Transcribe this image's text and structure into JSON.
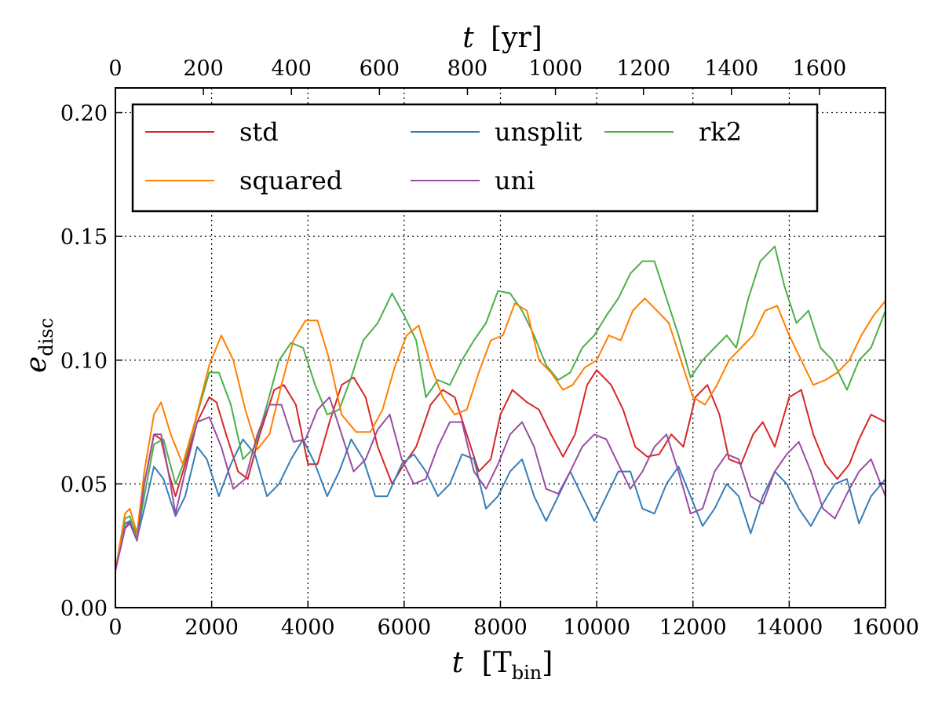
{
  "chart_data": {
    "type": "line",
    "xlabel": "t",
    "xlabel_unit": "[T",
    "xlabel_unit_sub": "bin",
    "xlabel_unit_close": "]",
    "top_xlabel": "t",
    "top_xlabel_unit": "[yr]",
    "ylabel": "e",
    "ylabel_sub": "disc",
    "xlim": [
      0,
      16000
    ],
    "ylim": [
      0,
      0.21
    ],
    "top_xlim": [
      0,
      1750
    ],
    "x_ticks": [
      0,
      2000,
      4000,
      6000,
      8000,
      10000,
      12000,
      14000,
      16000
    ],
    "x_tick_labels": [
      "0",
      "2000",
      "4000",
      "6000",
      "8000",
      "10000",
      "12000",
      "14000",
      "16000"
    ],
    "top_ticks": [
      0,
      200,
      400,
      600,
      800,
      1000,
      1200,
      1400,
      1600
    ],
    "top_tick_labels": [
      "0",
      "200",
      "400",
      "600",
      "800",
      "1000",
      "1200",
      "1400",
      "1600"
    ],
    "y_ticks": [
      0,
      0.05,
      0.1,
      0.15,
      0.2
    ],
    "y_tick_labels": [
      "0.00",
      "0.05",
      "0.10",
      "0.15",
      "0.20"
    ],
    "grid": true,
    "legend_position": "top",
    "legend_columns": 3,
    "series": [
      {
        "name": "std",
        "color": "#d62728",
        "x": [
          0,
          200,
          300,
          450,
          600,
          800,
          950,
          1100,
          1250,
          1450,
          1700,
          1950,
          2100,
          2300,
          2550,
          2750,
          3000,
          3300,
          3500,
          3750,
          4000,
          4200,
          4450,
          4700,
          4950,
          5200,
          5450,
          5750,
          6000,
          6250,
          6550,
          6800,
          7050,
          7300,
          7550,
          7800,
          8000,
          8250,
          8550,
          8800,
          9050,
          9300,
          9550,
          9800,
          10000,
          10300,
          10550,
          10800,
          11050,
          11300,
          11550,
          11800,
          12050,
          12300,
          12550,
          12750,
          13000,
          13250,
          13450,
          13700,
          14000,
          14250,
          14500,
          14750,
          15000,
          15250,
          15450,
          15700,
          16000
        ],
        "y": [
          0.015,
          0.032,
          0.035,
          0.03,
          0.05,
          0.07,
          0.068,
          0.055,
          0.045,
          0.058,
          0.075,
          0.085,
          0.083,
          0.07,
          0.055,
          0.052,
          0.07,
          0.088,
          0.09,
          0.082,
          0.058,
          0.058,
          0.075,
          0.09,
          0.093,
          0.085,
          0.065,
          0.05,
          0.058,
          0.065,
          0.082,
          0.088,
          0.085,
          0.07,
          0.055,
          0.06,
          0.078,
          0.088,
          0.083,
          0.08,
          0.07,
          0.061,
          0.07,
          0.09,
          0.096,
          0.09,
          0.08,
          0.065,
          0.061,
          0.062,
          0.07,
          0.065,
          0.085,
          0.09,
          0.078,
          0.06,
          0.058,
          0.07,
          0.075,
          0.065,
          0.085,
          0.088,
          0.07,
          0.058,
          0.052,
          0.058,
          0.068,
          0.078,
          0.075
        ]
      },
      {
        "name": "unsplit",
        "color": "#377eb8",
        "x": [
          0,
          200,
          300,
          450,
          600,
          800,
          1000,
          1250,
          1450,
          1700,
          1900,
          2150,
          2400,
          2650,
          2900,
          3150,
          3400,
          3650,
          3900,
          4150,
          4400,
          4650,
          4900,
          5150,
          5400,
          5650,
          5950,
          6200,
          6450,
          6700,
          6950,
          7200,
          7450,
          7700,
          7950,
          8200,
          8450,
          8700,
          8950,
          9200,
          9450,
          9700,
          9950,
          10200,
          10450,
          10700,
          10950,
          11200,
          11450,
          11700,
          11950,
          12200,
          12450,
          12700,
          12950,
          13200,
          13450,
          13700,
          13950,
          14200,
          14450,
          14700,
          14950,
          15200,
          15450,
          15700,
          16000
        ],
        "y": [
          0.015,
          0.034,
          0.035,
          0.028,
          0.04,
          0.057,
          0.052,
          0.037,
          0.045,
          0.065,
          0.06,
          0.045,
          0.058,
          0.068,
          0.062,
          0.045,
          0.05,
          0.06,
          0.068,
          0.058,
          0.045,
          0.055,
          0.068,
          0.06,
          0.045,
          0.045,
          0.058,
          0.062,
          0.055,
          0.045,
          0.05,
          0.062,
          0.06,
          0.04,
          0.045,
          0.055,
          0.06,
          0.045,
          0.035,
          0.045,
          0.055,
          0.045,
          0.035,
          0.045,
          0.055,
          0.055,
          0.04,
          0.038,
          0.05,
          0.057,
          0.045,
          0.033,
          0.04,
          0.05,
          0.045,
          0.03,
          0.045,
          0.055,
          0.05,
          0.04,
          0.033,
          0.042,
          0.05,
          0.052,
          0.034,
          0.045,
          0.052
        ]
      },
      {
        "name": "rk2",
        "color": "#4daf4a",
        "x": [
          0,
          200,
          300,
          450,
          600,
          800,
          1000,
          1250,
          1450,
          1700,
          1950,
          2150,
          2400,
          2650,
          2900,
          3150,
          3400,
          3650,
          3900,
          4150,
          4400,
          4650,
          4900,
          5150,
          5450,
          5750,
          6000,
          6250,
          6450,
          6700,
          6950,
          7200,
          7450,
          7700,
          7950,
          8200,
          8450,
          8700,
          8950,
          9200,
          9450,
          9700,
          9950,
          10200,
          10450,
          10700,
          10950,
          11200,
          11450,
          11700,
          11950,
          12200,
          12450,
          12700,
          12900,
          13150,
          13400,
          13700,
          13900,
          14150,
          14400,
          14650,
          14900,
          15200,
          15450,
          15700,
          16000
        ],
        "y": [
          0.015,
          0.036,
          0.037,
          0.028,
          0.045,
          0.066,
          0.068,
          0.05,
          0.06,
          0.078,
          0.095,
          0.095,
          0.082,
          0.06,
          0.065,
          0.082,
          0.1,
          0.107,
          0.105,
          0.09,
          0.078,
          0.08,
          0.093,
          0.108,
          0.115,
          0.127,
          0.118,
          0.108,
          0.085,
          0.092,
          0.09,
          0.1,
          0.108,
          0.115,
          0.128,
          0.127,
          0.12,
          0.11,
          0.098,
          0.092,
          0.095,
          0.105,
          0.11,
          0.118,
          0.125,
          0.135,
          0.14,
          0.14,
          0.125,
          0.11,
          0.093,
          0.1,
          0.105,
          0.11,
          0.105,
          0.125,
          0.14,
          0.146,
          0.13,
          0.115,
          0.12,
          0.105,
          0.1,
          0.088,
          0.1,
          0.105,
          0.12
        ]
      },
      {
        "name": "squared",
        "color": "#ff7f00",
        "x": [
          0,
          200,
          300,
          450,
          600,
          800,
          950,
          1150,
          1400,
          1650,
          1950,
          2200,
          2450,
          2700,
          2950,
          3200,
          3450,
          3700,
          3950,
          4200,
          4450,
          4700,
          5000,
          5300,
          5550,
          5800,
          6050,
          6300,
          6550,
          6800,
          7050,
          7300,
          7550,
          7800,
          8050,
          8300,
          8550,
          8800,
          9050,
          9300,
          9500,
          9750,
          10000,
          10250,
          10500,
          10750,
          11000,
          11250,
          11500,
          11750,
          12000,
          12250,
          12500,
          12750,
          13000,
          13250,
          13500,
          13750,
          14000,
          14250,
          14500,
          14750,
          15000,
          15250,
          15500,
          15750,
          16000
        ],
        "y": [
          0.015,
          0.038,
          0.04,
          0.03,
          0.055,
          0.078,
          0.083,
          0.07,
          0.058,
          0.075,
          0.098,
          0.11,
          0.1,
          0.08,
          0.064,
          0.07,
          0.09,
          0.108,
          0.116,
          0.116,
          0.1,
          0.078,
          0.071,
          0.071,
          0.08,
          0.097,
          0.11,
          0.114,
          0.098,
          0.085,
          0.078,
          0.08,
          0.095,
          0.108,
          0.11,
          0.123,
          0.12,
          0.1,
          0.095,
          0.088,
          0.09,
          0.097,
          0.1,
          0.11,
          0.108,
          0.12,
          0.125,
          0.12,
          0.115,
          0.1,
          0.085,
          0.082,
          0.09,
          0.1,
          0.105,
          0.11,
          0.12,
          0.122,
          0.11,
          0.1,
          0.09,
          0.092,
          0.095,
          0.1,
          0.11,
          0.118,
          0.124
        ]
      },
      {
        "name": "uni",
        "color": "#984ea3",
        "x": [
          0,
          200,
          300,
          450,
          600,
          800,
          950,
          1100,
          1250,
          1450,
          1700,
          1950,
          2200,
          2450,
          2700,
          2950,
          3200,
          3450,
          3700,
          3950,
          4200,
          4450,
          4700,
          4950,
          5200,
          5450,
          5700,
          5950,
          6200,
          6450,
          6700,
          6950,
          7200,
          7450,
          7700,
          7950,
          8200,
          8450,
          8700,
          8950,
          9200,
          9450,
          9700,
          9950,
          10200,
          10450,
          10700,
          10950,
          11200,
          11450,
          11700,
          11950,
          12200,
          12450,
          12700,
          12950,
          13200,
          13450,
          13700,
          13950,
          14200,
          14450,
          14700,
          14950,
          15200,
          15450,
          15700,
          16000
        ],
        "y": [
          0.015,
          0.032,
          0.034,
          0.027,
          0.05,
          0.07,
          0.07,
          0.055,
          0.038,
          0.055,
          0.075,
          0.077,
          0.065,
          0.048,
          0.052,
          0.07,
          0.082,
          0.082,
          0.067,
          0.068,
          0.08,
          0.085,
          0.07,
          0.055,
          0.06,
          0.072,
          0.078,
          0.06,
          0.05,
          0.052,
          0.065,
          0.075,
          0.075,
          0.055,
          0.048,
          0.058,
          0.07,
          0.075,
          0.065,
          0.048,
          0.046,
          0.055,
          0.065,
          0.07,
          0.068,
          0.058,
          0.048,
          0.055,
          0.065,
          0.07,
          0.055,
          0.038,
          0.04,
          0.055,
          0.062,
          0.06,
          0.045,
          0.042,
          0.055,
          0.062,
          0.067,
          0.055,
          0.04,
          0.036,
          0.046,
          0.055,
          0.06,
          0.045
        ]
      }
    ]
  }
}
